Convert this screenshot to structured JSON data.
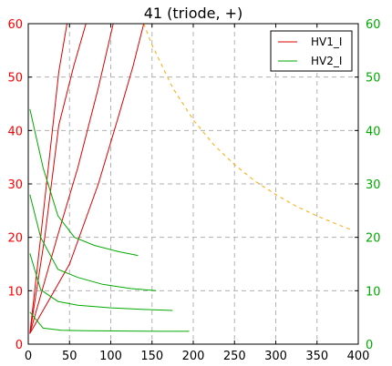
{
  "chart_data": {
    "type": "line",
    "title": "41 (triode, +)",
    "xlim": [
      0,
      400
    ],
    "ylim_left": [
      0,
      60
    ],
    "ylim_right": [
      0,
      60
    ],
    "x_ticks": [
      "0",
      "50",
      "100",
      "150",
      "200",
      "250",
      "300",
      "350",
      "400"
    ],
    "y_ticks_left": [
      "0",
      "10",
      "20",
      "30",
      "40",
      "50",
      "60"
    ],
    "y_ticks_right": [
      "0",
      "10",
      "20",
      "30",
      "40",
      "50",
      "60"
    ],
    "grid": true,
    "legend_position": "top-right",
    "colors": {
      "hv1": "#dd0000",
      "hv2": "#00aa00",
      "limit": "#ffaa00",
      "left_axis": "#ff0000",
      "right_axis": "#00aa00",
      "grid": "#b0b0b0"
    },
    "legend": [
      {
        "name": "HV1_I",
        "color": "#dd0000"
      },
      {
        "name": "HV2_I",
        "color": "#00aa00"
      }
    ],
    "series": [
      {
        "name": "HV1_I",
        "axis": "left",
        "style": "solid",
        "color": "#dd0000",
        "x": [
          2,
          15,
          25,
          37,
          47
        ],
        "y": [
          2,
          20,
          34,
          51,
          60
        ]
      },
      {
        "name": "HV1_I",
        "axis": "left",
        "style": "solid",
        "color": "#dd0000",
        "x": [
          2,
          20,
          37,
          55,
          70
        ],
        "y": [
          2,
          20,
          41,
          52,
          60
        ]
      },
      {
        "name": "HV1_I",
        "axis": "left",
        "style": "solid",
        "color": "#dd0000",
        "x": [
          2,
          35,
          60,
          85,
          103
        ],
        "y": [
          2,
          20,
          33,
          48,
          60
        ]
      },
      {
        "name": "HV1_I",
        "axis": "left",
        "style": "solid",
        "color": "#dd0000",
        "x": [
          2,
          50,
          85,
          110,
          127,
          140
        ],
        "y": [
          2,
          15,
          30,
          43,
          52,
          60
        ]
      },
      {
        "name": "HV2_I",
        "axis": "right",
        "style": "solid",
        "color": "#00aa00",
        "x": [
          2,
          18,
          36,
          56,
          80,
          110,
          133
        ],
        "y": [
          44,
          33,
          24,
          20,
          18.5,
          17.3,
          16.6
        ]
      },
      {
        "name": "HV2_I",
        "axis": "right",
        "style": "solid",
        "color": "#00aa00",
        "x": [
          2,
          15,
          36,
          60,
          90,
          125,
          155
        ],
        "y": [
          28,
          20,
          14,
          12.5,
          11.2,
          10.4,
          10
        ]
      },
      {
        "name": "HV2_I",
        "axis": "right",
        "style": "solid",
        "color": "#00aa00",
        "x": [
          2,
          15,
          36,
          60,
          100,
          140,
          175
        ],
        "y": [
          17,
          10.2,
          8,
          7.3,
          6.8,
          6.5,
          6.3
        ]
      },
      {
        "name": "HV2_I",
        "axis": "right",
        "style": "solid",
        "color": "#00aa00",
        "x": [
          2,
          18,
          40,
          70,
          120,
          160,
          195
        ],
        "y": [
          6,
          3,
          2.6,
          2.5,
          2.45,
          2.4,
          2.4
        ]
      },
      {
        "name": "",
        "axis": "left",
        "style": "dashed",
        "color": "#ffaa00",
        "x": [
          140,
          150,
          175,
          200,
          225,
          250,
          275,
          300,
          325,
          350,
          375,
          390
        ],
        "y": [
          60,
          56,
          48,
          42,
          37.3,
          33.6,
          30.5,
          28,
          25.8,
          24,
          22.4,
          21.5
        ]
      }
    ]
  }
}
